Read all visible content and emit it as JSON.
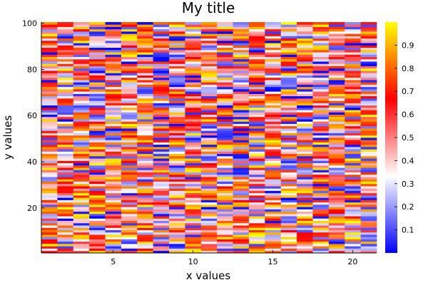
{
  "chart_data": {
    "type": "heatmap",
    "title": "My title",
    "xlabel": "x values",
    "ylabel": "y values",
    "x_range": [
      1,
      21
    ],
    "y_range": [
      1,
      100
    ],
    "x_ticks": [
      5,
      10,
      15,
      20
    ],
    "y_ticks": [
      20,
      40,
      60,
      80,
      100
    ],
    "colorbar": {
      "range": [
        0,
        1
      ],
      "ticks": [
        0.1,
        0.2,
        0.3,
        0.4,
        0.5,
        0.6,
        0.7,
        0.8,
        0.9
      ],
      "colormap": [
        "#0000ff",
        "#ffffff",
        "#ff0000",
        "#ffff00"
      ]
    },
    "grid": false,
    "values_note": "21 x 100 grid of random values in [0,1]; individual cells are too dense to read precisely, rendered with a deterministic pseudo-random pattern"
  }
}
